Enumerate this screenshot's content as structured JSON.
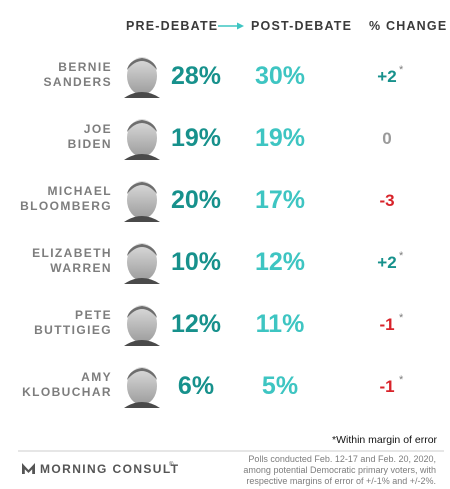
{
  "colors": {
    "pre": "#17918c",
    "post": "#3ec5c2",
    "positive": "#17918c",
    "negative": "#d8232a",
    "neutral": "#9a9a9a",
    "label": "#7d7d7d"
  },
  "chart_data": {
    "type": "table",
    "columns": {
      "pre": "PRE-DEBATE",
      "post": "POST-DEBATE",
      "change": "% CHANGE"
    },
    "unit": "%",
    "rows": [
      {
        "name_line1": "BERNIE",
        "name_line2": "SANDERS",
        "pre": 28,
        "post": 30,
        "change": 2,
        "change_label": "+2",
        "within_margin": true,
        "photo_icon": "sanders-portrait"
      },
      {
        "name_line1": "JOE",
        "name_line2": "BIDEN",
        "pre": 19,
        "post": 19,
        "change": 0,
        "change_label": "0",
        "within_margin": false,
        "photo_icon": "biden-portrait"
      },
      {
        "name_line1": "MICHAEL",
        "name_line2": "BLOOMBERG",
        "pre": 20,
        "post": 17,
        "change": -3,
        "change_label": "-3",
        "within_margin": false,
        "photo_icon": "bloomberg-portrait"
      },
      {
        "name_line1": "ELIZABETH",
        "name_line2": "WARREN",
        "pre": 10,
        "post": 12,
        "change": 2,
        "change_label": "+2",
        "within_margin": true,
        "photo_icon": "warren-portrait"
      },
      {
        "name_line1": "PETE",
        "name_line2": "BUTTIGIEG",
        "pre": 12,
        "post": 11,
        "change": -1,
        "change_label": "-1",
        "within_margin": true,
        "photo_icon": "buttigieg-portrait"
      },
      {
        "name_line1": "AMY",
        "name_line2": "KLOBUCHAR",
        "pre": 6,
        "post": 5,
        "change": -1,
        "change_label": "-1",
        "within_margin": true,
        "photo_icon": "klobuchar-portrait"
      }
    ],
    "margin_marker": "*",
    "footnote": "*Within margin of error"
  },
  "footer": {
    "brand": "MORNING CONSULT",
    "brand_mark": "®",
    "source_lines": [
      "Polls conducted Feb. 12-17 and Feb. 20, 2020,",
      "among potential Democratic primary voters, with",
      "respective margins of error of +/-1% and +/-2%."
    ]
  }
}
